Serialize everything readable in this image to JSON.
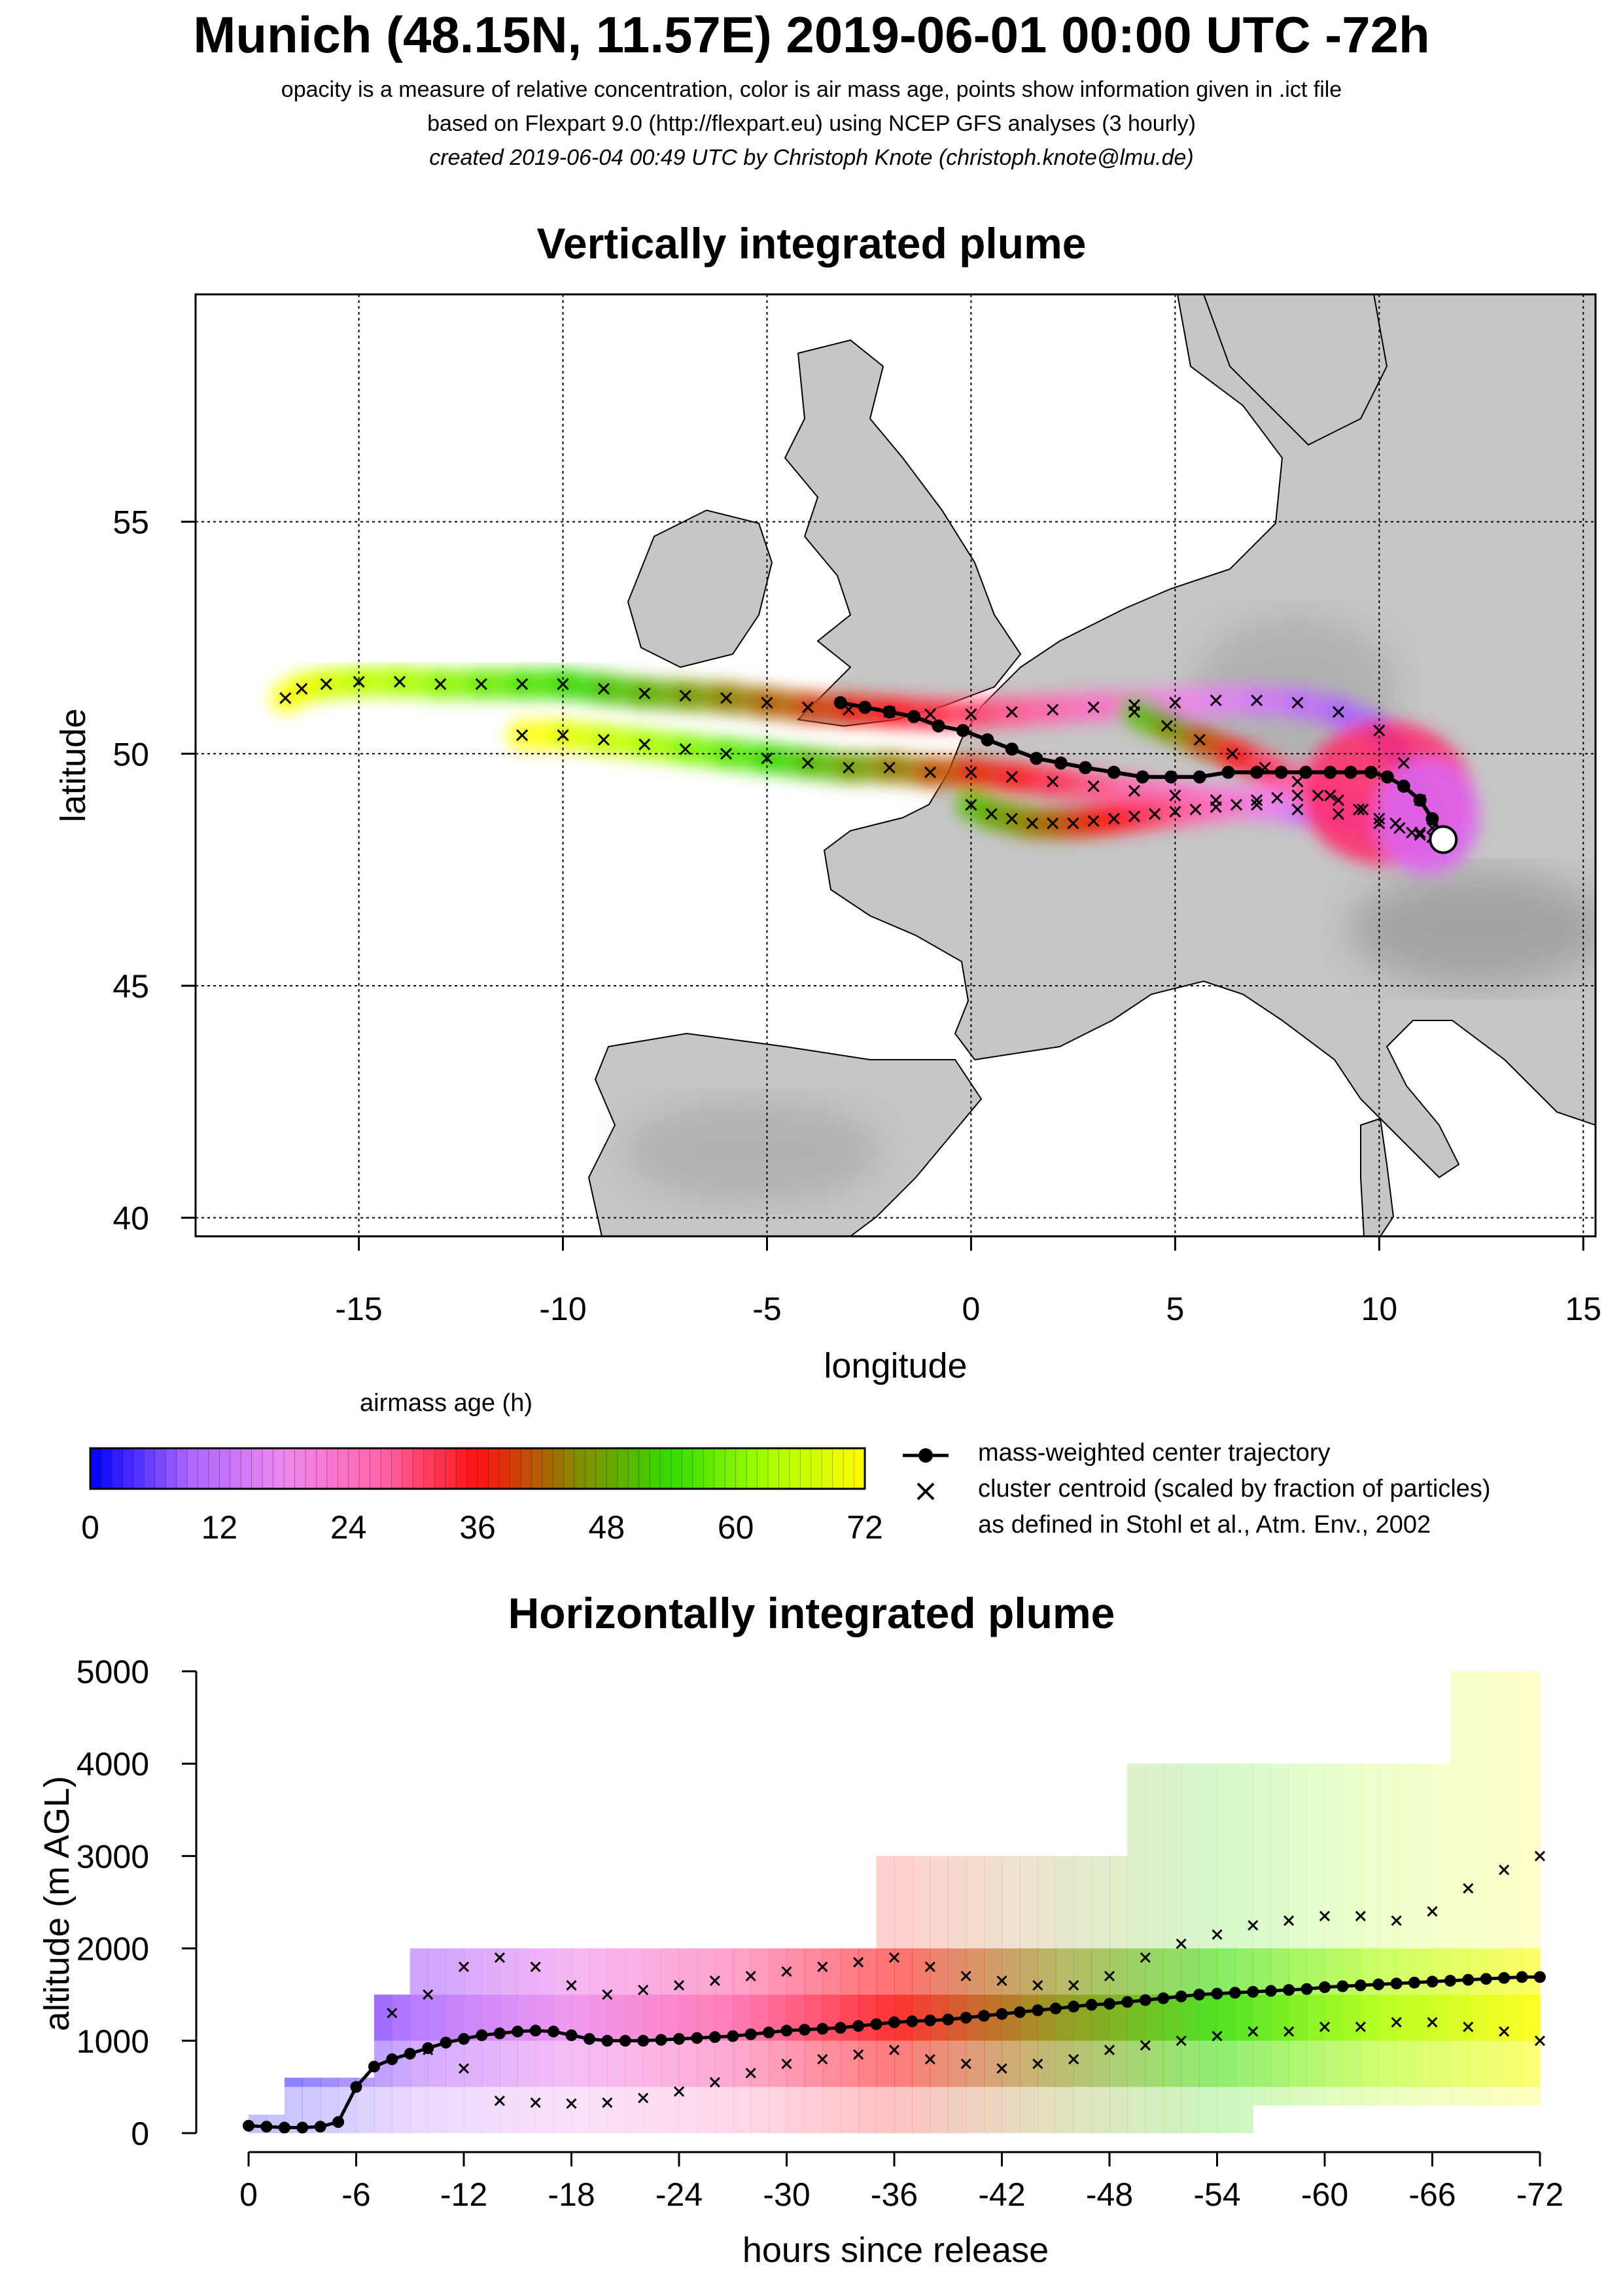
{
  "header": {
    "title": "Munich (48.15N, 11.57E) 2019-06-01 00:00 UTC -72h",
    "subtitle1": "opacity is a measure of relative concentration, color is air mass age, points show information given in .ict file",
    "subtitle2": "based on Flexpart 9.0 (http://flexpart.eu) using NCEP GFS analyses (3 hourly)",
    "subtitle3": "created 2019-06-04 00:49 UTC by Christoph Knote (christoph.knote@lmu.de)"
  },
  "legend": {
    "colorbar_title": "airmass age (h)",
    "colorbar_ticks": [
      "0",
      "12",
      "24",
      "36",
      "48",
      "60",
      "72"
    ],
    "center_label": "mass-weighted center trajectory",
    "cluster_label1": "cluster centroid (scaled by fraction of particles)",
    "cluster_label2": "as defined in Stohl et al., Atm. Env., 2002"
  },
  "colors": {
    "age_gradient": [
      "#0000ff",
      "#aa66ff",
      "#ee88ee",
      "#ff66aa",
      "#ff1111",
      "#888800",
      "#33dd00",
      "#aaff00",
      "#ffff00"
    ],
    "land": "#c8c8c8",
    "sea": "#ffffff"
  },
  "chart_data": [
    {
      "type": "scatter",
      "title": "Vertically integrated plume",
      "xlabel": "longitude",
      "ylabel": "latitude",
      "xlim": [
        -19,
        15.3
      ],
      "ylim": [
        39.6,
        59.9
      ],
      "xticks": [
        "-15",
        "-10",
        "-5",
        "0",
        "5",
        "10",
        "15"
      ],
      "yticks": [
        "40",
        "45",
        "50",
        "55"
      ],
      "grid": true,
      "release_point": {
        "lon": 11.57,
        "lat": 48.15
      },
      "series": [
        {
          "name": "mass-weighted center trajectory",
          "lon": [
            11.57,
            11.3,
            11.0,
            10.6,
            10.2,
            9.8,
            9.3,
            8.8,
            8.2,
            7.6,
            7.0,
            6.3,
            5.6,
            4.9,
            4.2,
            3.5,
            2.8,
            2.2,
            1.6,
            1.0,
            0.4,
            -0.2,
            -0.8,
            -1.4,
            -2.0,
            -2.6,
            -3.2
          ],
          "lat": [
            48.2,
            48.6,
            49.0,
            49.3,
            49.5,
            49.6,
            49.6,
            49.6,
            49.6,
            49.6,
            49.6,
            49.6,
            49.5,
            49.5,
            49.5,
            49.6,
            49.7,
            49.8,
            49.9,
            50.1,
            50.3,
            50.5,
            50.6,
            50.8,
            50.9,
            51.0,
            51.1
          ]
        },
        {
          "name": "cluster centroid (scaled by fraction of particles)",
          "paths": [
            {
              "lon": [
                -16.8,
                -16.4,
                -15.8,
                -15.0,
                -14.0,
                -13.0,
                -12.0,
                -11.0,
                -10.0,
                -9.0,
                -8.0,
                -7.0,
                -6.0,
                -5.0,
                -4.0,
                -3.0,
                -2.0,
                -1.0,
                0.0,
                1.0,
                2.0,
                3.0,
                4.0,
                5.0,
                6.0,
                7.0,
                8.0,
                9.0,
                10.0,
                10.6,
                11.0,
                11.3
              ],
              "lat": [
                51.2,
                51.4,
                51.5,
                51.55,
                51.55,
                51.5,
                51.5,
                51.5,
                51.5,
                51.4,
                51.3,
                51.25,
                51.2,
                51.1,
                51.0,
                50.95,
                50.9,
                50.85,
                50.85,
                50.9,
                50.95,
                51.0,
                51.05,
                51.1,
                51.15,
                51.15,
                51.1,
                50.9,
                50.5,
                49.8,
                49.0,
                48.4
              ]
            },
            {
              "lon": [
                -11.0,
                -10.0,
                -9.0,
                -8.0,
                -7.0,
                -6.0,
                -5.0,
                -4.0,
                -3.0,
                -2.0,
                -1.0,
                0.0,
                1.0,
                2.0,
                3.0,
                4.0,
                5.0,
                6.0,
                7.0,
                8.0,
                9.0,
                10.0,
                10.8,
                11.3
              ],
              "lat": [
                50.4,
                50.4,
                50.3,
                50.2,
                50.1,
                50.0,
                49.9,
                49.8,
                49.7,
                49.7,
                49.6,
                49.6,
                49.5,
                49.4,
                49.3,
                49.2,
                49.1,
                49.0,
                48.9,
                48.8,
                48.7,
                48.5,
                48.3,
                48.2
              ]
            },
            {
              "lon": [
                0.0,
                0.5,
                1.0,
                1.5,
                2.0,
                2.5,
                3.0,
                3.5,
                4.0,
                4.5,
                5.0,
                5.5,
                6.0,
                6.5,
                7.0,
                7.5,
                8.0,
                8.5,
                9.0,
                9.5,
                10.0,
                10.5,
                11.0,
                11.4
              ],
              "lat": [
                48.9,
                48.7,
                48.6,
                48.5,
                48.5,
                48.5,
                48.55,
                48.6,
                48.65,
                48.7,
                48.75,
                48.8,
                48.85,
                48.9,
                49.0,
                49.05,
                49.1,
                49.1,
                49.0,
                48.8,
                48.6,
                48.4,
                48.25,
                48.15
              ]
            },
            {
              "lon": [
                4.0,
                4.8,
                5.6,
                6.4,
                7.2,
                8.0,
                8.8,
                9.6,
                10.4,
                11.0,
                11.5
              ],
              "lat": [
                50.9,
                50.6,
                50.3,
                50.0,
                49.7,
                49.4,
                49.1,
                48.8,
                48.5,
                48.3,
                48.15
              ]
            }
          ]
        }
      ]
    },
    {
      "type": "heatmap",
      "title": "Horizontally integrated plume",
      "xlabel": "hours since release",
      "ylabel": "altitude (m AGL)",
      "xlim": [
        0,
        -72
      ],
      "ylim": [
        0,
        5000
      ],
      "xticks": [
        "0",
        "-6",
        "-12",
        "-18",
        "-24",
        "-30",
        "-36",
        "-42",
        "-48",
        "-54",
        "-60",
        "-66",
        "-72"
      ],
      "yticks": [
        "0",
        "1000",
        "2000",
        "3000",
        "4000",
        "5000"
      ],
      "series": [
        {
          "name": "mass-weighted center trajectory",
          "hours": [
            0,
            -1,
            -2,
            -3,
            -4,
            -5,
            -6,
            -7,
            -8,
            -9,
            -10,
            -11,
            -12,
            -13,
            -14,
            -15,
            -16,
            -17,
            -18,
            -19,
            -20,
            -21,
            -22,
            -23,
            -24,
            -25,
            -26,
            -27,
            -28,
            -29,
            -30,
            -31,
            -32,
            -33,
            -34,
            -35,
            -36,
            -37,
            -38,
            -39,
            -40,
            -41,
            -42,
            -43,
            -44,
            -45,
            -46,
            -47,
            -48,
            -49,
            -50,
            -51,
            -52,
            -53,
            -54,
            -55,
            -56,
            -57,
            -58,
            -59,
            -60,
            -61,
            -62,
            -63,
            -64,
            -65,
            -66,
            -67,
            -68,
            -69,
            -70,
            -71,
            -72
          ],
          "altitude": [
            80,
            70,
            60,
            60,
            70,
            120,
            500,
            720,
            800,
            860,
            920,
            980,
            1020,
            1060,
            1080,
            1100,
            1110,
            1100,
            1060,
            1020,
            1000,
            1000,
            1000,
            1010,
            1020,
            1030,
            1040,
            1050,
            1070,
            1090,
            1110,
            1120,
            1130,
            1140,
            1160,
            1180,
            1200,
            1210,
            1220,
            1230,
            1250,
            1270,
            1290,
            1310,
            1330,
            1350,
            1370,
            1390,
            1400,
            1420,
            1440,
            1460,
            1480,
            1500,
            1510,
            1520,
            1530,
            1540,
            1550,
            1560,
            1580,
            1590,
            1600,
            1610,
            1620,
            1630,
            1640,
            1650,
            1660,
            1670,
            1680,
            1690,
            1690
          ]
        },
        {
          "name": "cluster centroid upper",
          "hours": [
            -8,
            -10,
            -12,
            -14,
            -16,
            -18,
            -20,
            -22,
            -24,
            -26,
            -28,
            -30,
            -32,
            -34,
            -36,
            -38,
            -40,
            -42,
            -44,
            -46,
            -48,
            -50,
            -52,
            -54,
            -56,
            -58,
            -60,
            -62,
            -64,
            -66,
            -68,
            -70,
            -72
          ],
          "altitude": [
            1300,
            1500,
            1800,
            1900,
            1800,
            1600,
            1500,
            1550,
            1600,
            1650,
            1700,
            1750,
            1800,
            1850,
            1900,
            1800,
            1700,
            1650,
            1600,
            1600,
            1700,
            1900,
            2050,
            2150,
            2250,
            2300,
            2350,
            2350,
            2300,
            2400,
            2650,
            2850,
            3000
          ]
        },
        {
          "name": "cluster centroid lower",
          "hours": [
            -10,
            -12,
            -14,
            -16,
            -18,
            -20,
            -22,
            -24,
            -26,
            -28,
            -30,
            -32,
            -34,
            -36,
            -38,
            -40,
            -42,
            -44,
            -46,
            -48,
            -50,
            -52,
            -54,
            -56,
            -58,
            -60,
            -62,
            -64,
            -66,
            -68,
            -70,
            -72
          ],
          "altitude": [
            900,
            700,
            350,
            330,
            320,
            330,
            380,
            450,
            550,
            650,
            750,
            800,
            850,
            900,
            800,
            750,
            700,
            750,
            800,
            900,
            950,
            1000,
            1050,
            1100,
            1100,
            1150,
            1150,
            1200,
            1200,
            1150,
            1100,
            1000
          ]
        }
      ]
    }
  ]
}
